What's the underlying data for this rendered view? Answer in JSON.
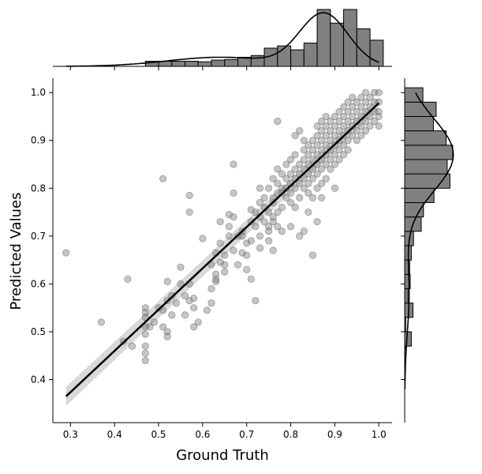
{
  "chart_data": {
    "type": "scatter",
    "xlabel": "Ground Truth",
    "ylabel": "Predicted Values",
    "xlim": [
      0.26,
      1.03
    ],
    "ylim": [
      0.31,
      1.03
    ],
    "xticks": [
      "0.3",
      "0.4",
      "0.5",
      "0.6",
      "0.7",
      "0.8",
      "0.9",
      "1.0"
    ],
    "xtick_values": [
      0.3,
      0.4,
      0.5,
      0.6,
      0.7,
      0.8,
      0.9,
      1.0
    ],
    "yticks": [
      "0.4",
      "0.5",
      "0.6",
      "0.7",
      "0.8",
      "0.9",
      "1.0"
    ],
    "ytick_values": [
      0.4,
      0.5,
      0.6,
      0.7,
      0.8,
      0.9,
      1.0
    ],
    "grid": false,
    "point_color": "#808080",
    "line_color": "#000000",
    "band_color": "#d9d9d9",
    "bar_color": "#808080",
    "regression": {
      "x": [
        0.29,
        1.0
      ],
      "y": [
        0.365,
        0.978
      ],
      "ci_lower": [
        0.345,
        0.965
      ],
      "ci_upper": [
        0.385,
        0.99
      ]
    },
    "points": [
      [
        0.29,
        0.665
      ],
      [
        0.37,
        0.52
      ],
      [
        0.42,
        0.48
      ],
      [
        0.43,
        0.61
      ],
      [
        0.44,
        0.47
      ],
      [
        0.47,
        0.55
      ],
      [
        0.47,
        0.54
      ],
      [
        0.47,
        0.53
      ],
      [
        0.47,
        0.51
      ],
      [
        0.47,
        0.495
      ],
      [
        0.47,
        0.47
      ],
      [
        0.47,
        0.455
      ],
      [
        0.47,
        0.44
      ],
      [
        0.48,
        0.51
      ],
      [
        0.49,
        0.52
      ],
      [
        0.5,
        0.55
      ],
      [
        0.51,
        0.545
      ],
      [
        0.51,
        0.51
      ],
      [
        0.51,
        0.82
      ],
      [
        0.52,
        0.5
      ],
      [
        0.52,
        0.49
      ],
      [
        0.52,
        0.565
      ],
      [
        0.52,
        0.605
      ],
      [
        0.53,
        0.575
      ],
      [
        0.53,
        0.535
      ],
      [
        0.54,
        0.56
      ],
      [
        0.55,
        0.6
      ],
      [
        0.55,
        0.635
      ],
      [
        0.56,
        0.535
      ],
      [
        0.56,
        0.575
      ],
      [
        0.57,
        0.565
      ],
      [
        0.57,
        0.6
      ],
      [
        0.57,
        0.75
      ],
      [
        0.57,
        0.785
      ],
      [
        0.58,
        0.57
      ],
      [
        0.58,
        0.51
      ],
      [
        0.58,
        0.55
      ],
      [
        0.59,
        0.52
      ],
      [
        0.6,
        0.695
      ],
      [
        0.61,
        0.545
      ],
      [
        0.62,
        0.56
      ],
      [
        0.62,
        0.59
      ],
      [
        0.62,
        0.64
      ],
      [
        0.63,
        0.605
      ],
      [
        0.63,
        0.61
      ],
      [
        0.63,
        0.62
      ],
      [
        0.63,
        0.665
      ],
      [
        0.64,
        0.645
      ],
      [
        0.64,
        0.685
      ],
      [
        0.64,
        0.73
      ],
      [
        0.65,
        0.64
      ],
      [
        0.65,
        0.625
      ],
      [
        0.65,
        0.66
      ],
      [
        0.66,
        0.72
      ],
      [
        0.66,
        0.745
      ],
      [
        0.66,
        0.7
      ],
      [
        0.67,
        0.79
      ],
      [
        0.67,
        0.74
      ],
      [
        0.67,
        0.67
      ],
      [
        0.67,
        0.85
      ],
      [
        0.68,
        0.7
      ],
      [
        0.68,
        0.64
      ],
      [
        0.69,
        0.71
      ],
      [
        0.69,
        0.665
      ],
      [
        0.69,
        0.7
      ],
      [
        0.7,
        0.63
      ],
      [
        0.7,
        0.66
      ],
      [
        0.7,
        0.685
      ],
      [
        0.71,
        0.61
      ],
      [
        0.71,
        0.755
      ],
      [
        0.71,
        0.73
      ],
      [
        0.71,
        0.69
      ],
      [
        0.72,
        0.72
      ],
      [
        0.72,
        0.565
      ],
      [
        0.72,
        0.75
      ],
      [
        0.73,
        0.74
      ],
      [
        0.73,
        0.77
      ],
      [
        0.73,
        0.7
      ],
      [
        0.73,
        0.675
      ],
      [
        0.73,
        0.8
      ],
      [
        0.74,
        0.78
      ],
      [
        0.74,
        0.73
      ],
      [
        0.74,
        0.76
      ],
      [
        0.75,
        0.71
      ],
      [
        0.75,
        0.69
      ],
      [
        0.75,
        0.75
      ],
      [
        0.75,
        0.8
      ],
      [
        0.75,
        0.72
      ],
      [
        0.76,
        0.78
      ],
      [
        0.76,
        0.82
      ],
      [
        0.76,
        0.77
      ],
      [
        0.76,
        0.73
      ],
      [
        0.76,
        0.74
      ],
      [
        0.76,
        0.67
      ],
      [
        0.77,
        0.79
      ],
      [
        0.77,
        0.84
      ],
      [
        0.77,
        0.94
      ],
      [
        0.77,
        0.81
      ],
      [
        0.77,
        0.75
      ],
      [
        0.77,
        0.72
      ],
      [
        0.78,
        0.8
      ],
      [
        0.78,
        0.83
      ],
      [
        0.78,
        0.79
      ],
      [
        0.78,
        0.76
      ],
      [
        0.78,
        0.71
      ],
      [
        0.79,
        0.82
      ],
      [
        0.79,
        0.85
      ],
      [
        0.79,
        0.8
      ],
      [
        0.79,
        0.78
      ],
      [
        0.8,
        0.83
      ],
      [
        0.8,
        0.81
      ],
      [
        0.8,
        0.86
      ],
      [
        0.8,
        0.79
      ],
      [
        0.8,
        0.77
      ],
      [
        0.8,
        0.72
      ],
      [
        0.81,
        0.84
      ],
      [
        0.81,
        0.82
      ],
      [
        0.81,
        0.8
      ],
      [
        0.81,
        0.87
      ],
      [
        0.81,
        0.91
      ],
      [
        0.81,
        0.76
      ],
      [
        0.82,
        0.85
      ],
      [
        0.82,
        0.83
      ],
      [
        0.82,
        0.81
      ],
      [
        0.82,
        0.78
      ],
      [
        0.82,
        0.92
      ],
      [
        0.82,
        0.7
      ],
      [
        0.83,
        0.86
      ],
      [
        0.83,
        0.84
      ],
      [
        0.83,
        0.82
      ],
      [
        0.83,
        0.8
      ],
      [
        0.83,
        0.88
      ],
      [
        0.83,
        0.9
      ],
      [
        0.83,
        0.71
      ],
      [
        0.84,
        0.87
      ],
      [
        0.84,
        0.85
      ],
      [
        0.84,
        0.83
      ],
      [
        0.84,
        0.81
      ],
      [
        0.84,
        0.79
      ],
      [
        0.84,
        0.89
      ],
      [
        0.84,
        0.75
      ],
      [
        0.85,
        0.88
      ],
      [
        0.85,
        0.86
      ],
      [
        0.85,
        0.84
      ],
      [
        0.85,
        0.82
      ],
      [
        0.85,
        0.9
      ],
      [
        0.85,
        0.78
      ],
      [
        0.85,
        0.66
      ],
      [
        0.86,
        0.89
      ],
      [
        0.86,
        0.87
      ],
      [
        0.86,
        0.85
      ],
      [
        0.86,
        0.83
      ],
      [
        0.86,
        0.91
      ],
      [
        0.86,
        0.93
      ],
      [
        0.86,
        0.8
      ],
      [
        0.86,
        0.73
      ],
      [
        0.87,
        0.9
      ],
      [
        0.87,
        0.88
      ],
      [
        0.87,
        0.86
      ],
      [
        0.87,
        0.84
      ],
      [
        0.87,
        0.92
      ],
      [
        0.87,
        0.94
      ],
      [
        0.87,
        0.81
      ],
      [
        0.87,
        0.78
      ],
      [
        0.88,
        0.91
      ],
      [
        0.88,
        0.89
      ],
      [
        0.88,
        0.87
      ],
      [
        0.88,
        0.85
      ],
      [
        0.88,
        0.93
      ],
      [
        0.88,
        0.95
      ],
      [
        0.88,
        0.82
      ],
      [
        0.89,
        0.92
      ],
      [
        0.89,
        0.9
      ],
      [
        0.89,
        0.88
      ],
      [
        0.89,
        0.86
      ],
      [
        0.89,
        0.94
      ],
      [
        0.89,
        0.84
      ],
      [
        0.9,
        0.93
      ],
      [
        0.9,
        0.91
      ],
      [
        0.9,
        0.89
      ],
      [
        0.9,
        0.87
      ],
      [
        0.9,
        0.95
      ],
      [
        0.9,
        0.85
      ],
      [
        0.9,
        0.8
      ],
      [
        0.91,
        0.94
      ],
      [
        0.91,
        0.92
      ],
      [
        0.91,
        0.9
      ],
      [
        0.91,
        0.88
      ],
      [
        0.91,
        0.96
      ],
      [
        0.91,
        0.86
      ],
      [
        0.92,
        0.95
      ],
      [
        0.92,
        0.93
      ],
      [
        0.92,
        0.91
      ],
      [
        0.92,
        0.89
      ],
      [
        0.92,
        0.97
      ],
      [
        0.92,
        0.87
      ],
      [
        0.93,
        0.96
      ],
      [
        0.93,
        0.94
      ],
      [
        0.93,
        0.92
      ],
      [
        0.93,
        0.9
      ],
      [
        0.93,
        0.98
      ],
      [
        0.93,
        0.88
      ],
      [
        0.94,
        0.97
      ],
      [
        0.94,
        0.95
      ],
      [
        0.94,
        0.93
      ],
      [
        0.94,
        0.91
      ],
      [
        0.94,
        0.99
      ],
      [
        0.95,
        0.98
      ],
      [
        0.95,
        0.96
      ],
      [
        0.95,
        0.94
      ],
      [
        0.95,
        0.92
      ],
      [
        0.95,
        0.9
      ],
      [
        0.96,
        0.99
      ],
      [
        0.96,
        0.97
      ],
      [
        0.96,
        0.95
      ],
      [
        0.96,
        0.93
      ],
      [
        0.96,
        0.91
      ],
      [
        0.97,
        1.0
      ],
      [
        0.97,
        0.98
      ],
      [
        0.97,
        0.96
      ],
      [
        0.97,
        0.94
      ],
      [
        0.97,
        0.92
      ],
      [
        0.98,
        0.99
      ],
      [
        0.98,
        0.97
      ],
      [
        0.98,
        0.95
      ],
      [
        0.98,
        0.93
      ],
      [
        0.99,
        1.0
      ],
      [
        0.99,
        0.98
      ],
      [
        0.99,
        0.96
      ],
      [
        0.99,
        0.94
      ],
      [
        1.0,
        1.0
      ],
      [
        1.0,
        0.98
      ],
      [
        1.0,
        0.96
      ],
      [
        1.0,
        0.95
      ],
      [
        1.0,
        0.93
      ]
    ],
    "x_histogram": {
      "bin_edges": [
        0.47,
        0.5,
        0.53,
        0.56,
        0.59,
        0.62,
        0.65,
        0.68,
        0.71,
        0.74,
        0.77,
        0.8,
        0.83,
        0.86,
        0.89,
        0.92,
        0.95,
        0.98,
        1.01
      ],
      "relative_heights": [
        0.09,
        0.09,
        0.09,
        0.09,
        0.08,
        0.11,
        0.12,
        0.16,
        0.19,
        0.32,
        0.36,
        0.29,
        0.41,
        1.0,
        0.76,
        1.0,
        0.66,
        0.46
      ]
    },
    "y_histogram": {
      "bin_edges": [
        0.44,
        0.47,
        0.5,
        0.53,
        0.56,
        0.59,
        0.62,
        0.65,
        0.68,
        0.71,
        0.74,
        0.77,
        0.8,
        0.83,
        0.86,
        0.89,
        0.92,
        0.95,
        0.98,
        1.01
      ],
      "relative_heights": [
        0.02,
        0.12,
        0.02,
        0.15,
        0.06,
        0.1,
        0.09,
        0.12,
        0.16,
        0.3,
        0.34,
        0.53,
        0.82,
        0.77,
        0.87,
        0.75,
        0.52,
        0.57,
        0.33
      ]
    }
  }
}
